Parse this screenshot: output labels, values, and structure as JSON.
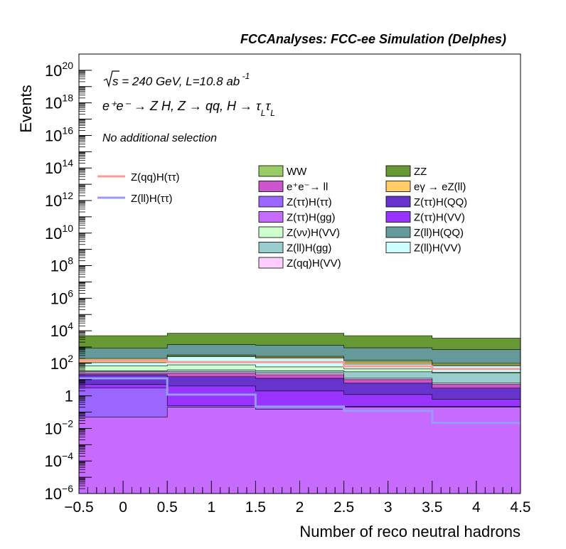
{
  "chart_data": {
    "type": "area",
    "title": "FCCAnalyses: FCC-ee Simulation (Delphes)",
    "xlabel": "Number of reco neutral hadrons",
    "ylabel": "Events",
    "yscale": "log",
    "xlim": [
      -0.5,
      4.5
    ],
    "ylim": [
      1e-06,
      1e+21
    ],
    "bin_edges": [
      -0.5,
      0.5,
      1.5,
      2.5,
      3.5,
      4.5
    ],
    "x_ticks": [
      {
        "value": -0.5,
        "label": "−0.5"
      },
      {
        "value": 0,
        "label": "0"
      },
      {
        "value": 0.5,
        "label": "0.5"
      },
      {
        "value": 1,
        "label": "1"
      },
      {
        "value": 1.5,
        "label": "1.5"
      },
      {
        "value": 2,
        "label": "2"
      },
      {
        "value": 2.5,
        "label": "2.5"
      },
      {
        "value": 3,
        "label": "3"
      },
      {
        "value": 3.5,
        "label": "3.5"
      },
      {
        "value": 4,
        "label": "4"
      },
      {
        "value": 4.5,
        "label": "4.5"
      }
    ],
    "y_ticks": [
      {
        "exp": -6,
        "base": "10",
        "sup": "−6"
      },
      {
        "exp": -4,
        "base": "10",
        "sup": "−4"
      },
      {
        "exp": -2,
        "base": "10",
        "sup": "−2"
      },
      {
        "exp": 0,
        "base": "1",
        "sup": ""
      },
      {
        "exp": 2,
        "base": "10",
        "sup": "2"
      },
      {
        "exp": 4,
        "base": "10",
        "sup": "4"
      },
      {
        "exp": 6,
        "base": "10",
        "sup": "6"
      },
      {
        "exp": 8,
        "base": "10",
        "sup": "8"
      },
      {
        "exp": 10,
        "base": "10",
        "sup": "10"
      },
      {
        "exp": 12,
        "base": "10",
        "sup": "12"
      },
      {
        "exp": 14,
        "base": "10",
        "sup": "14"
      },
      {
        "exp": 16,
        "base": "10",
        "sup": "16"
      },
      {
        "exp": 18,
        "base": "10",
        "sup": "18"
      },
      {
        "exp": 20,
        "base": "10",
        "sup": "20"
      }
    ],
    "annotations": {
      "energy_prefix": "s",
      "energy_text": " = 240 GeV, L=10.8 ab",
      "energy_sup": " -1",
      "process": "e⁺e⁻ → Z H, Z → qq, H → τ",
      "process_sub": "L",
      "process_sub_tail": "τ",
      "process_sub2": "L",
      "selection": "No additional selection"
    },
    "stack": [
      {
        "name": "Z(ττ)H(gg)",
        "color": "#c76bff",
        "cumulative": [
          0.05,
          0.2,
          0.15,
          0.2,
          0.2
        ]
      },
      {
        "name": "Z(ττ)H(ττ)",
        "color": "#9b66ff",
        "cumulative": [
          3,
          0.25,
          0.2,
          0.22,
          0.22
        ]
      },
      {
        "name": "Z(ττ)H(VV)",
        "color": "#9933ff",
        "cumulative": [
          5,
          4,
          2,
          1.2,
          0.6
        ]
      },
      {
        "name": "Z(ττ)H(QQ)",
        "color": "#6633cc",
        "cumulative": [
          20,
          15,
          12,
          6,
          3
        ]
      },
      {
        "name": "e⁺e⁻→ ll",
        "color": "#cc55cc",
        "cumulative": [
          25,
          25,
          20,
          10,
          5
        ]
      },
      {
        "name": "Z(qq)H(VV)",
        "color": "#ffccff",
        "cumulative": [
          30,
          30,
          25,
          12,
          6
        ]
      },
      {
        "name": "Z(ll)H(gg)",
        "color": "#99cccc",
        "cumulative": [
          35,
          40,
          35,
          30,
          25
        ]
      },
      {
        "name": "Z(νν)H(VV)",
        "color": "#ccffcc",
        "cumulative": [
          70,
          80,
          60,
          45,
          28
        ]
      },
      {
        "name": "Z(ll)H(VV)",
        "color": "#ccffff",
        "cumulative": [
          110,
          260,
          200,
          90,
          70
        ]
      },
      {
        "name": "eγ → eZ(ll)",
        "color": "#ffcc66",
        "cumulative": [
          160,
          280,
          230,
          120,
          80
        ]
      },
      {
        "name": "WW",
        "color": "#99cc66",
        "cumulative": [
          200,
          330,
          270,
          150,
          100
        ]
      },
      {
        "name": "Z(ll)H(QQ)",
        "color": "#669999",
        "cumulative": [
          850,
          1400,
          1300,
          900,
          700
        ]
      },
      {
        "name": "ZZ",
        "color": "#669933",
        "cumulative": [
          5000,
          7000,
          7000,
          5000,
          3500
        ]
      }
    ],
    "lines": [
      {
        "name": "Z(qq)H(ττ)",
        "color": "#ff9999",
        "values": [
          150,
          120,
          120,
          65,
          45
        ]
      },
      {
        "name": "Z(ll)H(ττ)",
        "color": "#9999ff",
        "values": [
          12,
          1.2,
          0.22,
          0.12,
          0.022
        ]
      }
    ],
    "legend_left": [
      "Z(qq)H(ττ)",
      "Z(ll)H(ττ)"
    ],
    "legend_middle": [
      "WW",
      "e⁺e⁻→ ll",
      "Z(ττ)H(ττ)",
      "Z(ττ)H(gg)",
      "Z(νν)H(VV)",
      "Z(ll)H(gg)",
      "Z(qq)H(VV)"
    ],
    "legend_right": [
      "ZZ",
      "eγ → eZ(ll)",
      "Z(ττ)H(QQ)",
      "Z(ττ)H(VV)",
      "Z(ll)H(QQ)",
      "Z(ll)H(VV)"
    ],
    "legend_colors": {
      "WW": "#99cc66",
      "ZZ": "#669933",
      "e⁺e⁻→ ll": "#cc55cc",
      "eγ → eZ(ll)": "#ffcc66",
      "Z(ττ)H(ττ)": "#9b66ff",
      "Z(ττ)H(QQ)": "#6633cc",
      "Z(ττ)H(gg)": "#c76bff",
      "Z(ττ)H(VV)": "#9933ff",
      "Z(νν)H(VV)": "#ccffcc",
      "Z(ll)H(QQ)": "#669999",
      "Z(ll)H(gg)": "#99cccc",
      "Z(ll)H(VV)": "#ccffff",
      "Z(qq)H(VV)": "#ffccff",
      "Z(qq)H(ττ)": "#ff9999",
      "Z(ll)H(ττ)": "#9999ff"
    }
  }
}
